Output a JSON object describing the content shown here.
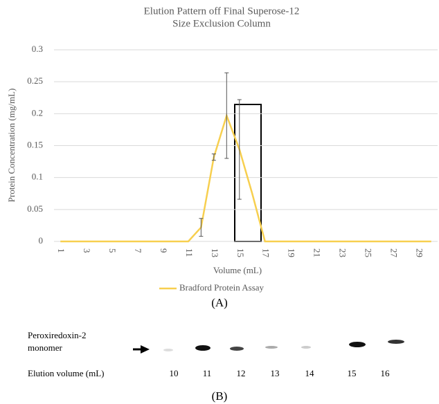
{
  "chart_data": {
    "type": "line",
    "title_lines": [
      "Elution Pattern off Final Superose-12",
      "Size Exclusion Column"
    ],
    "x_label": "Volume (mL)",
    "y_label": "Protein Concentration (mg/mL)",
    "categories": [
      1,
      null,
      3,
      null,
      5,
      null,
      7,
      null,
      9,
      null,
      11,
      null,
      13,
      null,
      15,
      null,
      17,
      null,
      19,
      null,
      21,
      null,
      23,
      null,
      25,
      null,
      27,
      null,
      29,
      null
    ],
    "series": [
      {
        "name": "Bradford Protein Assay",
        "color": "#f7cf4f",
        "values": [
          0,
          0,
          0,
          0,
          0,
          0,
          0,
          0,
          0,
          0,
          0,
          0.022,
          0.132,
          0.197,
          0.144,
          0.075,
          0,
          0,
          0,
          0,
          0,
          0,
          0,
          0,
          0,
          0,
          0,
          0,
          0,
          0
        ],
        "errors": [
          null,
          null,
          null,
          null,
          null,
          null,
          null,
          null,
          null,
          null,
          null,
          0.014,
          0.005,
          0.067,
          0.078,
          null,
          null,
          null,
          null,
          null,
          null,
          null,
          null,
          null,
          null,
          null,
          null,
          null,
          null,
          null
        ]
      }
    ],
    "ylim": [
      0,
      0.3
    ],
    "yticks": [
      0,
      0.05,
      0.1,
      0.15,
      0.2,
      0.25,
      0.3
    ],
    "grid": true,
    "legend": "bottom"
  },
  "panel_labels": [
    "(A)",
    "(B)"
  ],
  "gel": {
    "band_label": [
      "Peroxiredoxin-2",
      "monomer"
    ],
    "axis_label": "Elution volume (mL)",
    "lanes": [
      10,
      11,
      12,
      13,
      14,
      15,
      16
    ]
  }
}
